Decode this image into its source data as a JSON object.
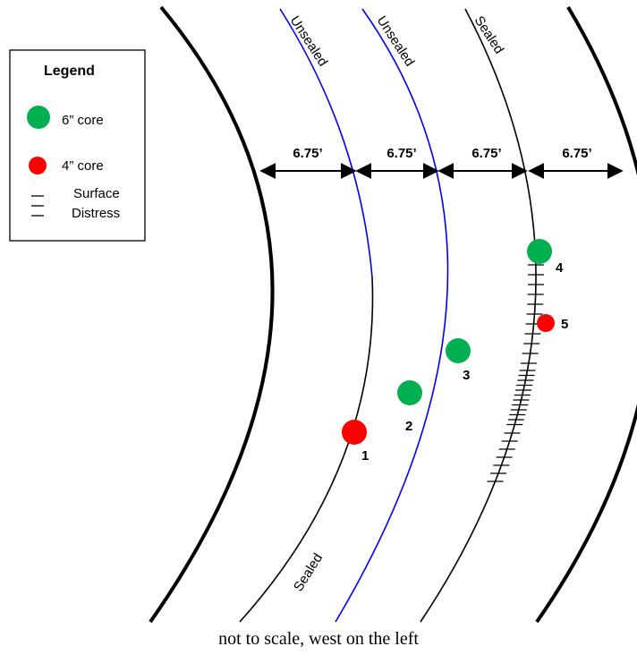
{
  "legend": {
    "title": "Legend",
    "items": [
      {
        "label": "6” core",
        "color": "#00b050",
        "icon": "large-dot-icon"
      },
      {
        "label": "4” core",
        "color": "#ff0000",
        "icon": "small-dot-icon"
      },
      {
        "label": "Surface\nDistress",
        "icon": "tick-marks-icon"
      }
    ]
  },
  "lanes": [
    {
      "label": "Unsealed",
      "color": "#0000ff"
    },
    {
      "label": "Unsealed",
      "color": "#0000ff"
    },
    {
      "label": "Sealed",
      "color": "#000000"
    }
  ],
  "bottom_label": "Sealed",
  "widths": [
    "6.75’",
    "6.75’",
    "6.75’",
    "6.75’"
  ],
  "cores": [
    {
      "id": "1",
      "size": "4”",
      "color": "#ff0000"
    },
    {
      "id": "2",
      "size": "6”",
      "color": "#00b050"
    },
    {
      "id": "3",
      "size": "6”",
      "color": "#00b050"
    },
    {
      "id": "4",
      "size": "6”",
      "color": "#00b050"
    },
    {
      "id": "5",
      "size": "4”",
      "color": "#ff0000"
    }
  ],
  "caption": "not to scale, west on the left"
}
